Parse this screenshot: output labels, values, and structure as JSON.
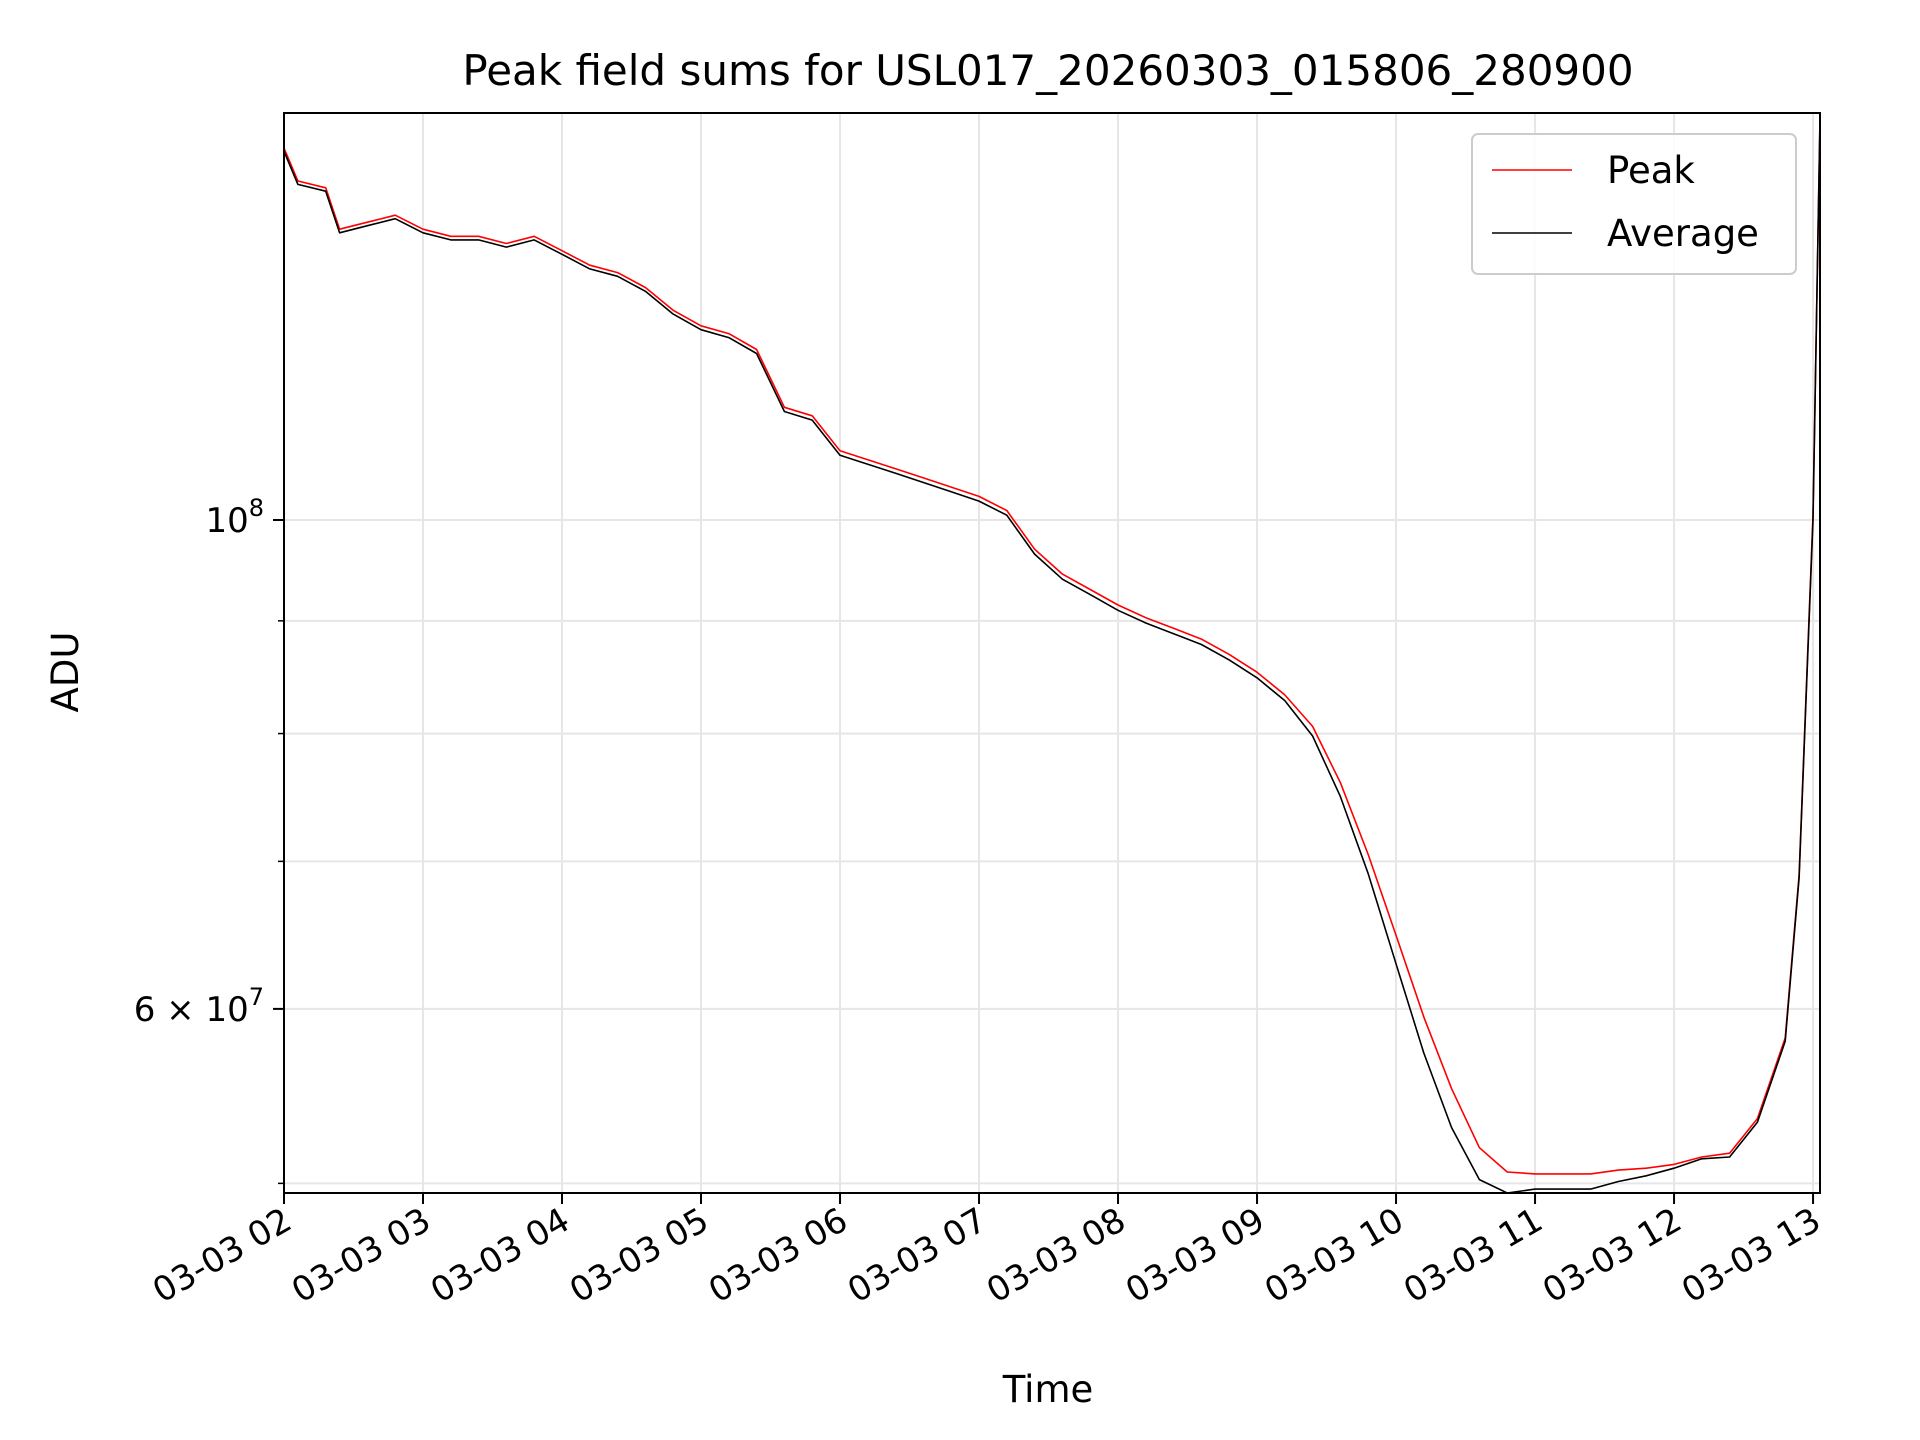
{
  "chart_data": {
    "type": "line",
    "title": "Peak field sums for USL017_20260303_015806_280900",
    "xlabel": "Time",
    "ylabel": "ADU",
    "yscale": "log",
    "ylim": [
      49500000,
      153000000
    ],
    "x_unit": "hours after 03-03 02:00",
    "xlim": [
      0,
      11.05
    ],
    "grid": true,
    "legend_position": "upper right",
    "x_ticks": [
      {
        "value": 0,
        "label": "03-03 02"
      },
      {
        "value": 1,
        "label": "03-03 03"
      },
      {
        "value": 2,
        "label": "03-03 04"
      },
      {
        "value": 3,
        "label": "03-03 05"
      },
      {
        "value": 4,
        "label": "03-03 06"
      },
      {
        "value": 5,
        "label": "03-03 07"
      },
      {
        "value": 6,
        "label": "03-03 08"
      },
      {
        "value": 7,
        "label": "03-03 09"
      },
      {
        "value": 8,
        "label": "03-03 10"
      },
      {
        "value": 9,
        "label": "03-03 11"
      },
      {
        "value": 10,
        "label": "03-03 12"
      },
      {
        "value": 11,
        "label": "03-03 13"
      }
    ],
    "y_major_ticks": [
      {
        "value": 100000000,
        "base": "10",
        "exp": "8"
      },
      {
        "value": 60000000,
        "mantissa": "6 × 10",
        "exp": "7"
      }
    ],
    "y_minor_ticks": [
      50000000,
      70000000,
      80000000,
      90000000
    ],
    "series": [
      {
        "name": "Average",
        "color": "#000000",
        "x": [
          0.0,
          0.1,
          0.3,
          0.4,
          0.6,
          0.8,
          1.0,
          1.2,
          1.4,
          1.6,
          1.8,
          2.0,
          2.2,
          2.4,
          2.6,
          2.8,
          3.0,
          3.2,
          3.4,
          3.6,
          3.8,
          4.0,
          4.2,
          4.4,
          4.6,
          4.8,
          5.0,
          5.2,
          5.4,
          5.6,
          5.8,
          6.0,
          6.2,
          6.4,
          6.6,
          6.8,
          7.0,
          7.2,
          7.4,
          7.6,
          7.8,
          8.0,
          8.2,
          8.4,
          8.6,
          8.8,
          9.0,
          9.2,
          9.4,
          9.6,
          9.8,
          10.0,
          10.2,
          10.4,
          10.6,
          10.8,
          10.9,
          11.0,
          11.05
        ],
        "y": [
          147000000,
          142000000,
          141000000,
          135000000,
          136000000,
          137000000,
          135000000,
          134000000,
          134000000,
          133000000,
          134000000,
          132000000,
          130000000,
          129000000,
          127000000,
          124000000,
          122000000,
          121000000,
          119000000,
          112000000,
          111000000,
          107000000,
          106000000,
          105000000,
          104000000,
          103000000,
          102000000,
          100500000,
          96500000,
          94000000,
          92500000,
          91000000,
          89800000,
          88800000,
          87800000,
          86400000,
          84800000,
          82800000,
          79800000,
          74900000,
          69100000,
          62900000,
          57300000,
          53000000,
          50200000,
          49500000,
          49700000,
          49700000,
          49700000,
          50100000,
          50400000,
          50800000,
          51300000,
          51400000,
          53300000,
          58000000,
          68800000,
          100000000,
          152000000
        ]
      },
      {
        "name": "Peak",
        "color": "#ff0000",
        "x": [
          0.0,
          0.1,
          0.3,
          0.4,
          0.6,
          0.8,
          1.0,
          1.2,
          1.4,
          1.6,
          1.8,
          2.0,
          2.2,
          2.4,
          2.6,
          2.8,
          3.0,
          3.2,
          3.4,
          3.6,
          3.8,
          4.0,
          4.2,
          4.4,
          4.6,
          4.8,
          5.0,
          5.2,
          5.4,
          5.6,
          5.8,
          6.0,
          6.2,
          6.4,
          6.6,
          6.8,
          7.0,
          7.2,
          7.4,
          7.6,
          7.8,
          8.0,
          8.2,
          8.4,
          8.6,
          8.8,
          9.0,
          9.2,
          9.4,
          9.6,
          9.8,
          10.0,
          10.2,
          10.4,
          10.6,
          10.8,
          10.9,
          11.0,
          11.05
        ],
        "y": [
          147500000,
          142500000,
          141500000,
          135500000,
          136500000,
          137500000,
          135500000,
          134500000,
          134500000,
          133500000,
          134500000,
          132500000,
          130500000,
          129500000,
          127500000,
          124500000,
          122500000,
          121500000,
          119500000,
          112500000,
          111500000,
          107500000,
          106500000,
          105500000,
          104500000,
          103500000,
          102500000,
          101000000,
          97000000,
          94500000,
          93000000,
          91500000,
          90300000,
          89300000,
          88300000,
          86900000,
          85300000,
          83300000,
          80600000,
          76000000,
          70500000,
          64800000,
          59500000,
          55200000,
          51900000,
          50600000,
          50500000,
          50500000,
          50500000,
          50700000,
          50800000,
          51000000,
          51400000,
          51600000,
          53500000,
          58200000,
          69000000,
          100500000,
          152000000
        ]
      }
    ]
  }
}
